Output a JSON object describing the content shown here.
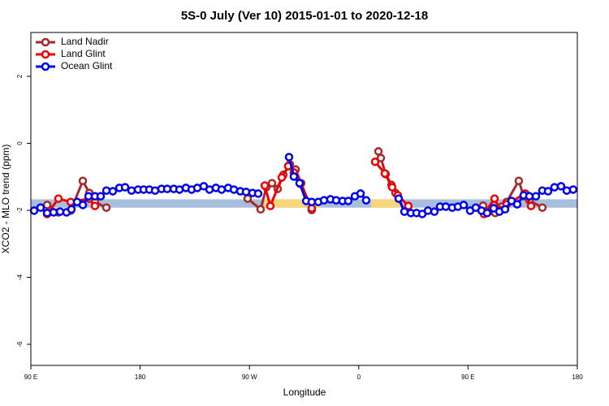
{
  "chart_data": {
    "type": "line",
    "title": "5S-0 July (Ver 10)   2015-01-01 to 2020-12-18",
    "x_label": "Longitude",
    "y_label": "XCO2 - MLO trend (ppm)",
    "xlim": [
      90,
      540
    ],
    "ylim": [
      -6.63,
      3.31
    ],
    "xticks": [
      {
        "value": 90,
        "label": "90 E"
      },
      180,
      {
        "value": 270,
        "label": "90 W"
      },
      {
        "value": 360,
        "label": "0"
      },
      {
        "value": 450,
        "label": "90 E"
      },
      {
        "value": 540,
        "label": "180"
      }
    ],
    "yticks": [
      -6,
      -4,
      -2,
      0,
      2
    ],
    "legend": "top-left",
    "bands": [
      {
        "color": "#a7bedc",
        "x": [
          90,
          540
        ],
        "y": [
          -1.92,
          -1.67
        ]
      },
      {
        "color": "#f8d77c",
        "x": [
          282,
          329
        ],
        "y": [
          -1.92,
          -1.67
        ]
      },
      {
        "color": "#f8d77c",
        "x": [
          370,
          395.6
        ],
        "y": [
          -1.92,
          -1.67
        ]
      }
    ],
    "series": [
      {
        "name": "Land Nadir",
        "color": "#a52a2a",
        "x": [
          103.4,
          112.7,
          122.8,
          132.8,
          138.1,
          142.8,
          152.2,
          200,
          268.5,
          279.2,
          283.9,
          288.6,
          293.3,
          297.9,
          303.3,
          308.0,
          312.6,
          321.3,
          340,
          376.2,
          378.2,
          382.2,
          386.9,
          390.2,
          392.9,
          430,
          462.4,
          467.1,
          472.4,
          477.8,
          481.8,
          491.8,
          495.8,
          500.5,
          511.2
        ],
        "values": [
          -1.84,
          -2.06,
          -2.01,
          -1.12,
          -1.48,
          -1.75,
          -1.92,
          null,
          -1.65,
          -1.97,
          -1.31,
          -1.19,
          -1.36,
          -0.94,
          -0.63,
          -0.78,
          -1.19,
          -1.99,
          null,
          -0.24,
          -0.44,
          -0.92,
          -1.24,
          -1.48,
          -1.65,
          null,
          -1.86,
          -2.04,
          -2.08,
          -1.89,
          -1.75,
          -1.12,
          -1.58,
          -1.7,
          -1.92
        ]
      },
      {
        "name": "Land Glint",
        "color": "#ee0000",
        "x": [
          103.4,
          112.7,
          122.8,
          138.1,
          142.8,
          200,
          282.6,
          287.2,
          296.6,
          301.9,
          306.6,
          312.0,
          321.3,
          340,
          373.5,
          381.5,
          387.5,
          392.2,
          400.9,
          430,
          463.1,
          471.8,
          476.5,
          481.8,
          497.2,
          501.9
        ],
        "values": [
          -2.11,
          -1.65,
          -1.75,
          -1.65,
          -1.87,
          null,
          -1.26,
          -1.87,
          -1.02,
          -0.68,
          -0.87,
          -1.21,
          -1.94,
          null,
          -0.55,
          -0.9,
          -1.31,
          -1.55,
          -1.87,
          null,
          -2.11,
          -1.65,
          -1.99,
          -1.82,
          -1.5,
          -1.87
        ]
      },
      {
        "name": "Ocean Glint",
        "color": "#0000ee",
        "x": [
          92.7,
          98,
          103.4,
          108.7,
          114.1,
          119.4,
          123.4,
          128.1,
          132.8,
          137.5,
          142.8,
          147.5,
          152.2,
          157.5,
          162.9,
          167.6,
          172.9,
          178.3,
          182.9,
          187.6,
          192.3,
          197.6,
          202.3,
          207.7,
          212.4,
          217.7,
          222.4,
          227.1,
          232.4,
          237.1,
          242.4,
          247.1,
          252.5,
          257.2,
          262.5,
          267.2,
          272.5,
          277.2,
          290,
          302.6,
          306.6,
          311.3,
          316.7,
          321.3,
          326.7,
          331.4,
          336.7,
          341.4,
          346.7,
          351.4,
          356.8,
          361.5,
          366.1,
          380,
          392.9,
          397.6,
          402.9,
          407.6,
          412.3,
          417.0,
          422.3,
          427.0,
          431.7,
          437.0,
          441.7,
          446.4,
          451.7,
          456.4,
          461.1,
          465.7,
          471.1,
          475.8,
          480.5,
          485.8,
          490.5,
          495.8,
          500.5,
          505.9,
          511.2,
          515.9,
          521.2,
          526.6,
          531.3,
          536.6
        ],
        "values": [
          -2.01,
          -1.92,
          -2.08,
          -2.06,
          -2.04,
          -2.06,
          -1.97,
          -1.75,
          -1.84,
          -1.58,
          -1.58,
          -1.58,
          -1.41,
          -1.43,
          -1.33,
          -1.31,
          -1.41,
          -1.38,
          -1.38,
          -1.38,
          -1.41,
          -1.36,
          -1.36,
          -1.36,
          -1.38,
          -1.33,
          -1.38,
          -1.33,
          -1.28,
          -1.38,
          -1.33,
          -1.38,
          -1.33,
          -1.38,
          -1.43,
          -1.45,
          -1.48,
          -1.5,
          null,
          -0.41,
          -0.99,
          -1.19,
          -1.72,
          -1.75,
          -1.75,
          -1.7,
          -1.67,
          -1.7,
          -1.72,
          -1.72,
          -1.58,
          -1.5,
          -1.7,
          null,
          -1.65,
          -2.04,
          -2.08,
          -2.08,
          -2.11,
          -2.01,
          -2.04,
          -1.89,
          -1.89,
          -1.92,
          -1.89,
          -1.84,
          -2.01,
          -1.92,
          -2.01,
          -2.08,
          -1.94,
          -2.04,
          -1.97,
          -1.72,
          -1.82,
          -1.55,
          -1.58,
          -1.58,
          -1.41,
          -1.43,
          -1.31,
          -1.28,
          -1.41,
          -1.38
        ]
      }
    ]
  }
}
